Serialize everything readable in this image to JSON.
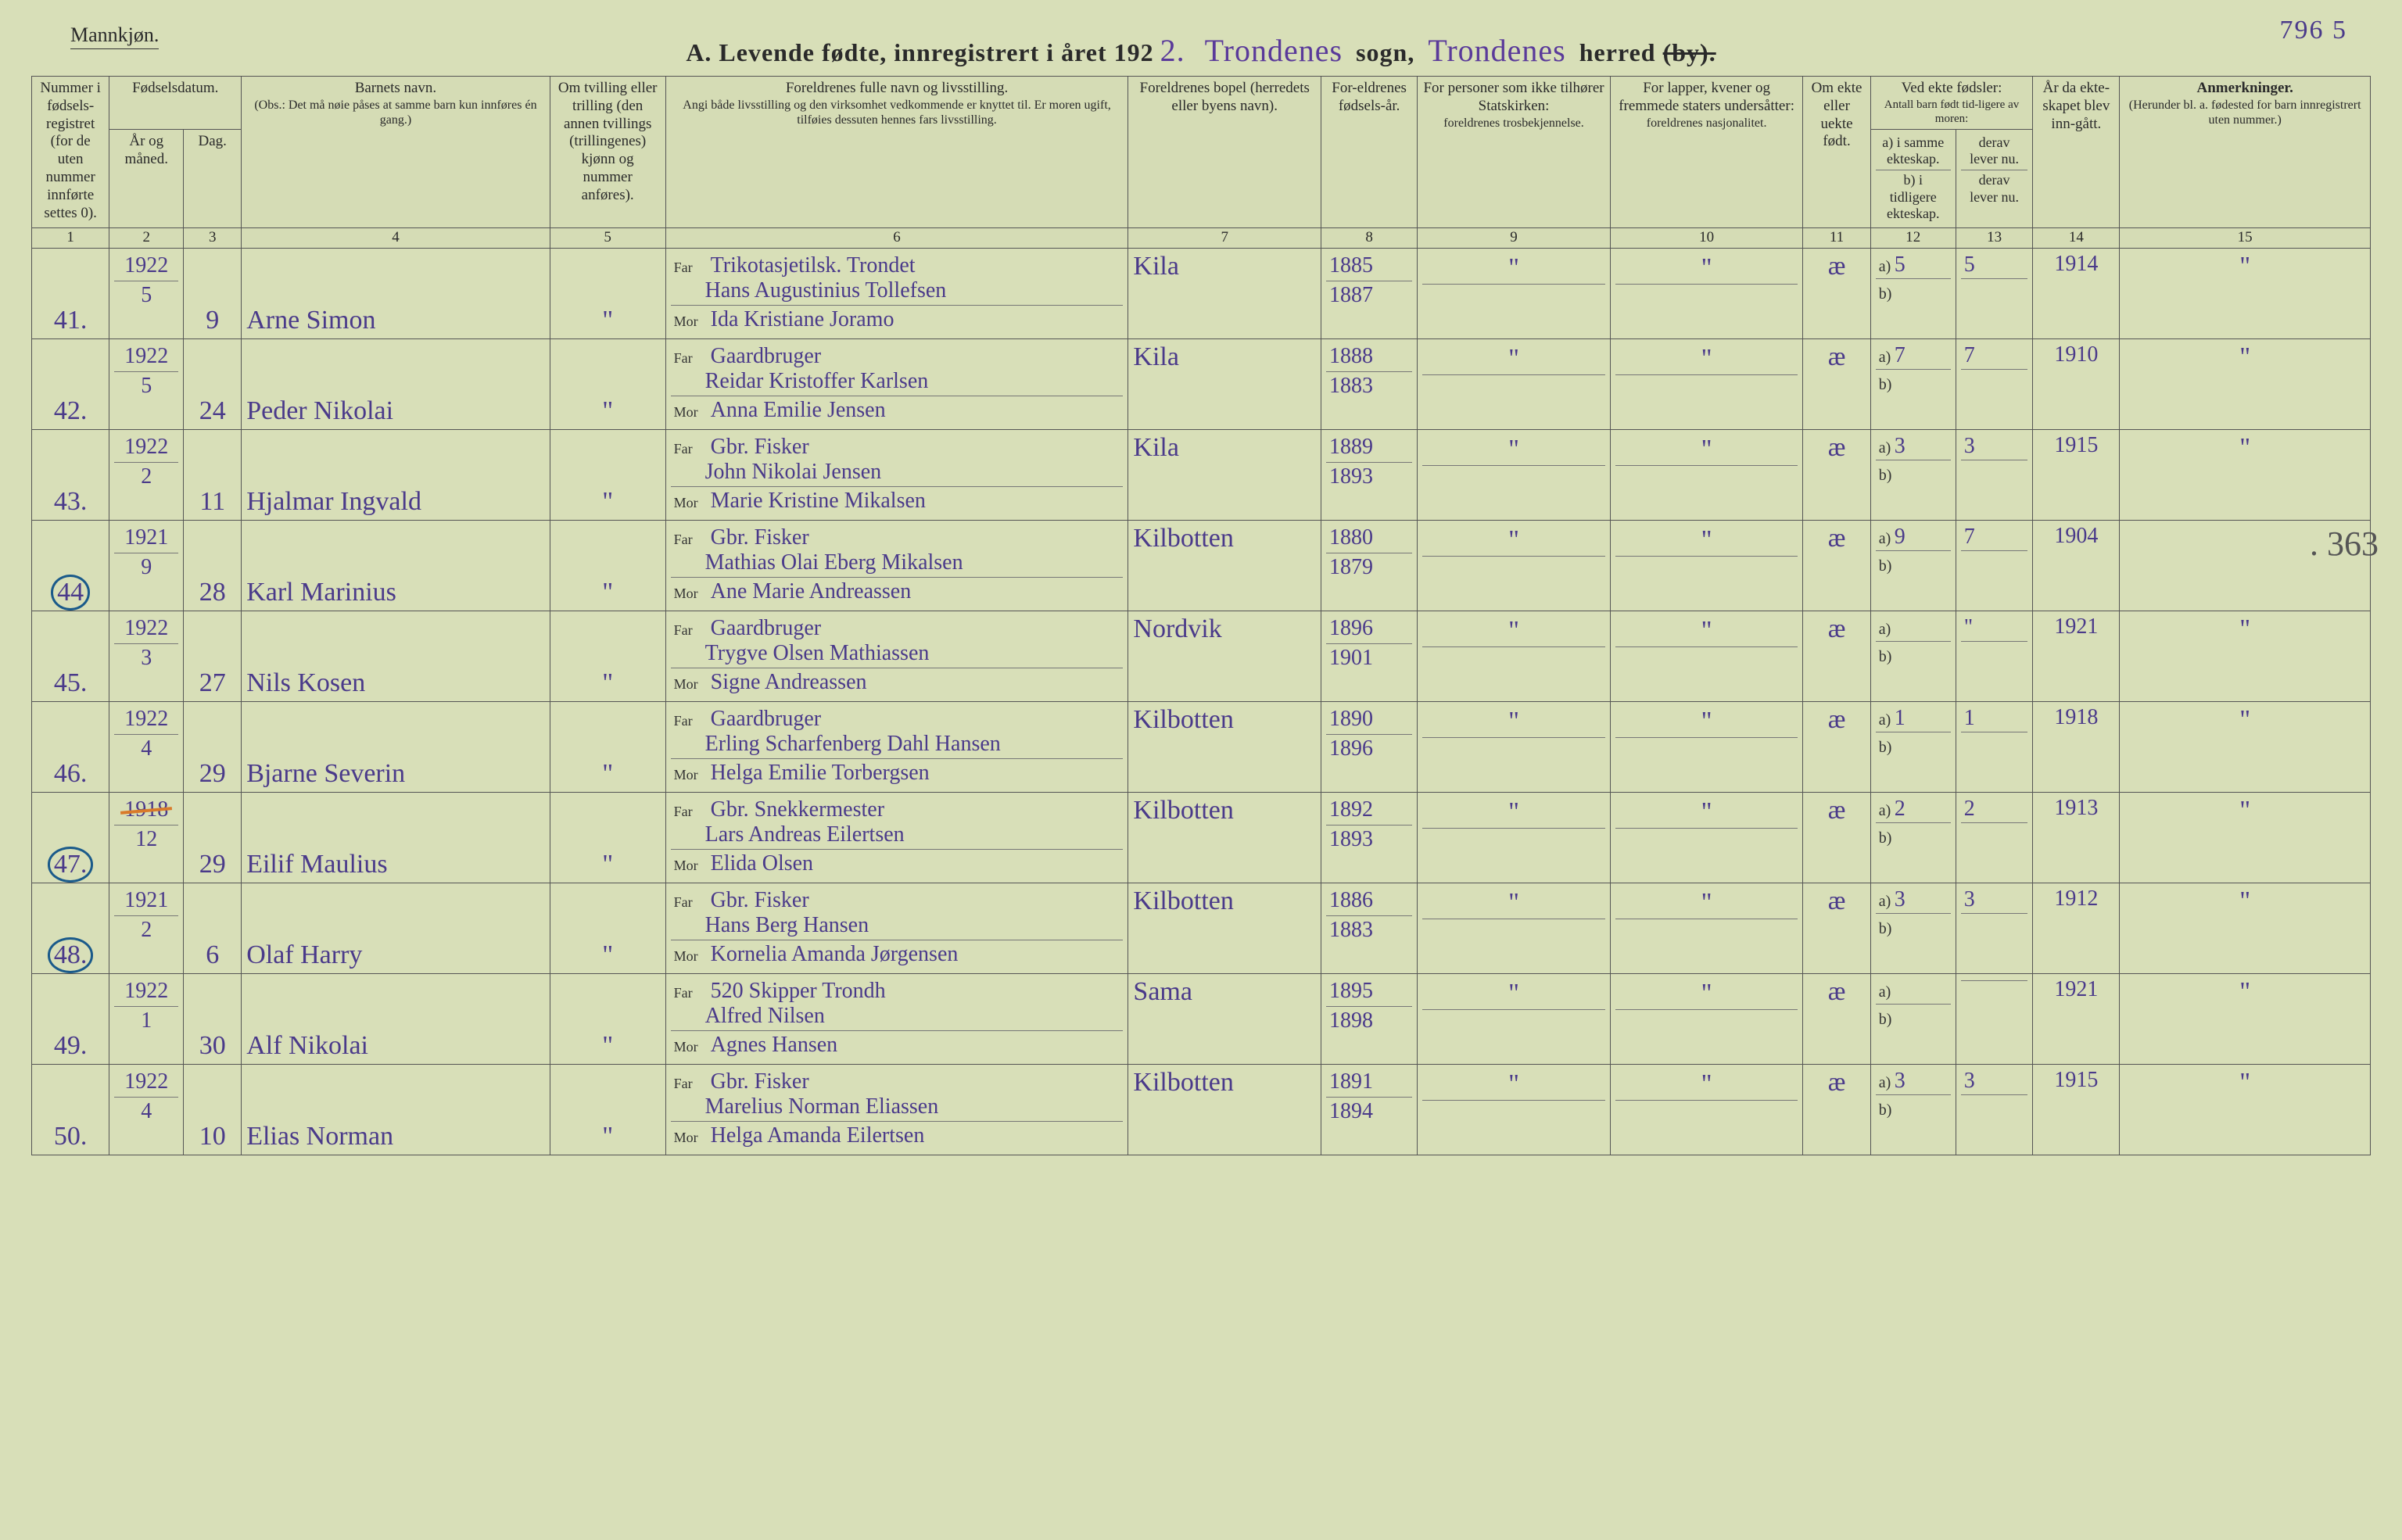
{
  "page_number_handwritten": "796  5",
  "gender": "Mannkjøn.",
  "title_prefix": "A.  Levende  fødte,  innregistrert  i  året  192",
  "title_year_suffix": "2.",
  "sogn_hw": "Trondenes",
  "sogn_label": "sogn,",
  "herred_hw": "Trondenes",
  "herred_label": "herred",
  "by_struck": "(by).",
  "side_margin_note": ". 363",
  "headers": {
    "col1": "Nummer i fødsels-registret (for de uten nummer innførte settes 0).",
    "col2_3_top": "Fødselsdatum.",
    "col2": "År og måned.",
    "col3": "Dag.",
    "col4_top": "Barnets navn.",
    "col4_sub": "(Obs.: Det må nøie påses at samme barn kun innføres én gang.)",
    "col5": "Om tvilling eller trilling (den annen tvillings (trillingenes) kjønn og nummer anføres).",
    "col6_top": "Foreldrenes fulle navn og livsstilling.",
    "col6_sub": "Angi både livsstilling og den virksomhet vedkommende er knyttet til. Er moren ugift, tilføies dessuten hennes fars livsstilling.",
    "col7": "Foreldrenes bopel (herredets eller byens navn).",
    "col8": "For-eldrenes fødsels-år.",
    "col9_top": "For personer som ikke tilhører Statskirken:",
    "col9_sub": "foreldrenes trosbekjennelse.",
    "col10_top": "For lapper, kvener og fremmede staters undersåtter:",
    "col10_sub": "foreldrenes nasjonalitet.",
    "col11": "Om ekte eller uekte født.",
    "col12_13_top": "Ved ekte fødsler:",
    "col12_13_sub": "Antall barn født tid-ligere av moren:",
    "col12_a": "a) i samme ekteskap.",
    "col12_b": "b) i tidligere ekteskap.",
    "col13_a": "derav lever nu.",
    "col13_b": "derav lever nu.",
    "col14": "År da ekte-skapet blev inn-gått.",
    "col15_top": "Anmerkninger.",
    "col15_sub": "(Herunder bl. a. fødested for barn innregistrert uten nummer.)"
  },
  "colnums": [
    "1",
    "2",
    "3",
    "4",
    "5",
    "6",
    "7",
    "8",
    "9",
    "10",
    "11",
    "12",
    "13",
    "14",
    "15"
  ],
  "far_label": "Far",
  "mor_label": "Mor",
  "ditto": "\"",
  "rows": [
    {
      "num": "41.",
      "num_circled": false,
      "year": "1922",
      "month": "5",
      "day": "9",
      "name": "Arne Simon",
      "twin": "\"",
      "far_occ": "Trikotasjetilsk. Trondet",
      "far_name": "Hans Augustinius Tollefsen",
      "mor_name": "Ida Kristiane Joramo",
      "bopel": "Kila",
      "far_yr": "1885",
      "mor_yr": "1887",
      "tros_f": "\"",
      "tros_m": "",
      "nas_f": "\"",
      "nas_m": "",
      "ekte": "æ",
      "a12": "5",
      "a13": "5",
      "b12": "",
      "b13": "",
      "col14": "1914",
      "anm": "\"",
      "year_struck": false
    },
    {
      "num": "42.",
      "num_circled": false,
      "year": "1922",
      "month": "5",
      "day": "24",
      "name": "Peder Nikolai",
      "twin": "\"",
      "far_occ": "Gaardbruger",
      "far_name": "Reidar Kristoffer Karlsen",
      "mor_name": "Anna Emilie Jensen",
      "bopel": "Kila",
      "far_yr": "1888",
      "mor_yr": "1883",
      "tros_f": "\"",
      "tros_m": "",
      "nas_f": "\"",
      "nas_m": "",
      "ekte": "æ",
      "a12": "7",
      "a13": "7",
      "b12": "",
      "b13": "",
      "col14": "1910",
      "anm": "\"",
      "year_struck": false
    },
    {
      "num": "43.",
      "num_circled": false,
      "year": "1922",
      "month": "2",
      "day": "11",
      "name": "Hjalmar Ingvald",
      "twin": "\"",
      "far_occ": "Gbr. Fisker",
      "far_name": "John Nikolai Jensen",
      "mor_name": "Marie Kristine Mikalsen",
      "bopel": "Kila",
      "far_yr": "1889",
      "mor_yr": "1893",
      "tros_f": "\"",
      "tros_m": "",
      "nas_f": "\"",
      "nas_m": "",
      "ekte": "æ",
      "a12": "3",
      "a13": "3",
      "b12": "",
      "b13": "",
      "col14": "1915",
      "anm": "\"",
      "year_struck": false
    },
    {
      "num": "44",
      "num_circled": true,
      "year": "1921",
      "month": "9",
      "day": "28",
      "name": "Karl Marinius",
      "twin": "\"",
      "far_occ": "Gbr. Fisker",
      "far_name": "Mathias Olai Eberg Mikalsen",
      "mor_name": "Ane Marie Andreassen",
      "bopel": "Kilbotten",
      "far_yr": "1880",
      "mor_yr": "1879",
      "tros_f": "\"",
      "tros_m": "",
      "nas_f": "\"",
      "nas_m": "",
      "ekte": "æ",
      "a12": "9",
      "a13": "7",
      "b12": "",
      "b13": "",
      "col14": "1904",
      "anm": "",
      "year_struck": false
    },
    {
      "num": "45.",
      "num_circled": false,
      "year": "1922",
      "month": "3",
      "day": "27",
      "name": "Nils Kosen",
      "twin": "\"",
      "far_occ": "Gaardbruger",
      "far_name": "Trygve Olsen Mathiassen",
      "mor_name": "Signe Andreassen",
      "bopel": "Nordvik",
      "far_yr": "1896",
      "mor_yr": "1901",
      "tros_f": "\"",
      "tros_m": "",
      "nas_f": "\"",
      "nas_m": "",
      "ekte": "æ",
      "a12": "",
      "a13": "\"",
      "b12": "",
      "b13": "",
      "col14": "1921",
      "anm": "\"",
      "year_struck": false
    },
    {
      "num": "46.",
      "num_circled": false,
      "year": "1922",
      "month": "4",
      "day": "29",
      "name": "Bjarne Severin",
      "twin": "\"",
      "far_occ": "Gaardbruger",
      "far_name": "Erling Scharfenberg Dahl Hansen",
      "mor_name": "Helga Emilie Torbergsen",
      "bopel": "Kilbotten",
      "far_yr": "1890",
      "mor_yr": "1896",
      "tros_f": "\"",
      "tros_m": "",
      "nas_f": "\"",
      "nas_m": "",
      "ekte": "æ",
      "a12": "1",
      "a13": "1",
      "b12": "",
      "b13": "",
      "col14": "1918",
      "anm": "\"",
      "year_struck": false
    },
    {
      "num": "47.",
      "num_circled": true,
      "year": "1918",
      "month": "12",
      "day": "29",
      "name": "Eilif Maulius",
      "twin": "\"",
      "far_occ": "Gbr. Snekkermester",
      "far_name": "Lars Andreas Eilertsen",
      "mor_name": "Elida Olsen",
      "bopel": "Kilbotten",
      "far_yr": "1892",
      "mor_yr": "1893",
      "tros_f": "\"",
      "tros_m": "",
      "nas_f": "\"",
      "nas_m": "",
      "ekte": "æ",
      "a12": "2",
      "a13": "2",
      "b12": "",
      "b13": "",
      "col14": "1913",
      "anm": "\"",
      "year_struck": true
    },
    {
      "num": "48.",
      "num_circled": true,
      "year": "1921",
      "month": "2",
      "day": "6",
      "name": "Olaf Harry",
      "twin": "\"",
      "far_occ": "Gbr. Fisker",
      "far_name": "Hans Berg Hansen",
      "mor_name": "Kornelia Amanda Jørgensen",
      "bopel": "Kilbotten",
      "far_yr": "1886",
      "mor_yr": "1883",
      "tros_f": "\"",
      "tros_m": "",
      "nas_f": "\"",
      "nas_m": "",
      "ekte": "æ",
      "a12": "3",
      "a13": "3",
      "b12": "",
      "b13": "",
      "col14": "1912",
      "anm": "\"",
      "year_struck": false
    },
    {
      "num": "49.",
      "num_circled": false,
      "year": "1922",
      "month": "1",
      "day": "30",
      "name": "Alf Nikolai",
      "twin": "\"",
      "far_occ": "520 Skipper Trondh",
      "far_name": "Alfred Nilsen",
      "mor_name": "Agnes Hansen",
      "bopel": "Sama",
      "far_yr": "1895",
      "mor_yr": "1898",
      "tros_f": "\"",
      "tros_m": "",
      "nas_f": "\"",
      "nas_m": "",
      "ekte": "æ",
      "a12": "",
      "a13": "",
      "b12": "",
      "b13": "",
      "col14": "1921",
      "anm": "\"",
      "year_struck": false
    },
    {
      "num": "50.",
      "num_circled": false,
      "year": "1922",
      "month": "4",
      "day": "10",
      "name": "Elias Norman",
      "twin": "\"",
      "far_occ": "Gbr. Fisker",
      "far_name": "Marelius Norman Eliassen",
      "mor_name": "Helga Amanda Eilertsen",
      "bopel": "Kilbotten",
      "far_yr": "1891",
      "mor_yr": "1894",
      "tros_f": "\"",
      "tros_m": "",
      "nas_f": "\"",
      "nas_m": "",
      "ekte": "æ",
      "a12": "3",
      "a13": "3",
      "b12": "",
      "b13": "",
      "col14": "1915",
      "anm": "\"",
      "year_struck": false
    }
  ],
  "colors": {
    "paper": "#d8dfb8",
    "ink_printed": "#2a2a2a",
    "ink_handwritten": "#4a3a8a",
    "circle_blue": "#1a5a8a",
    "orange_strike": "#d97a2a"
  }
}
